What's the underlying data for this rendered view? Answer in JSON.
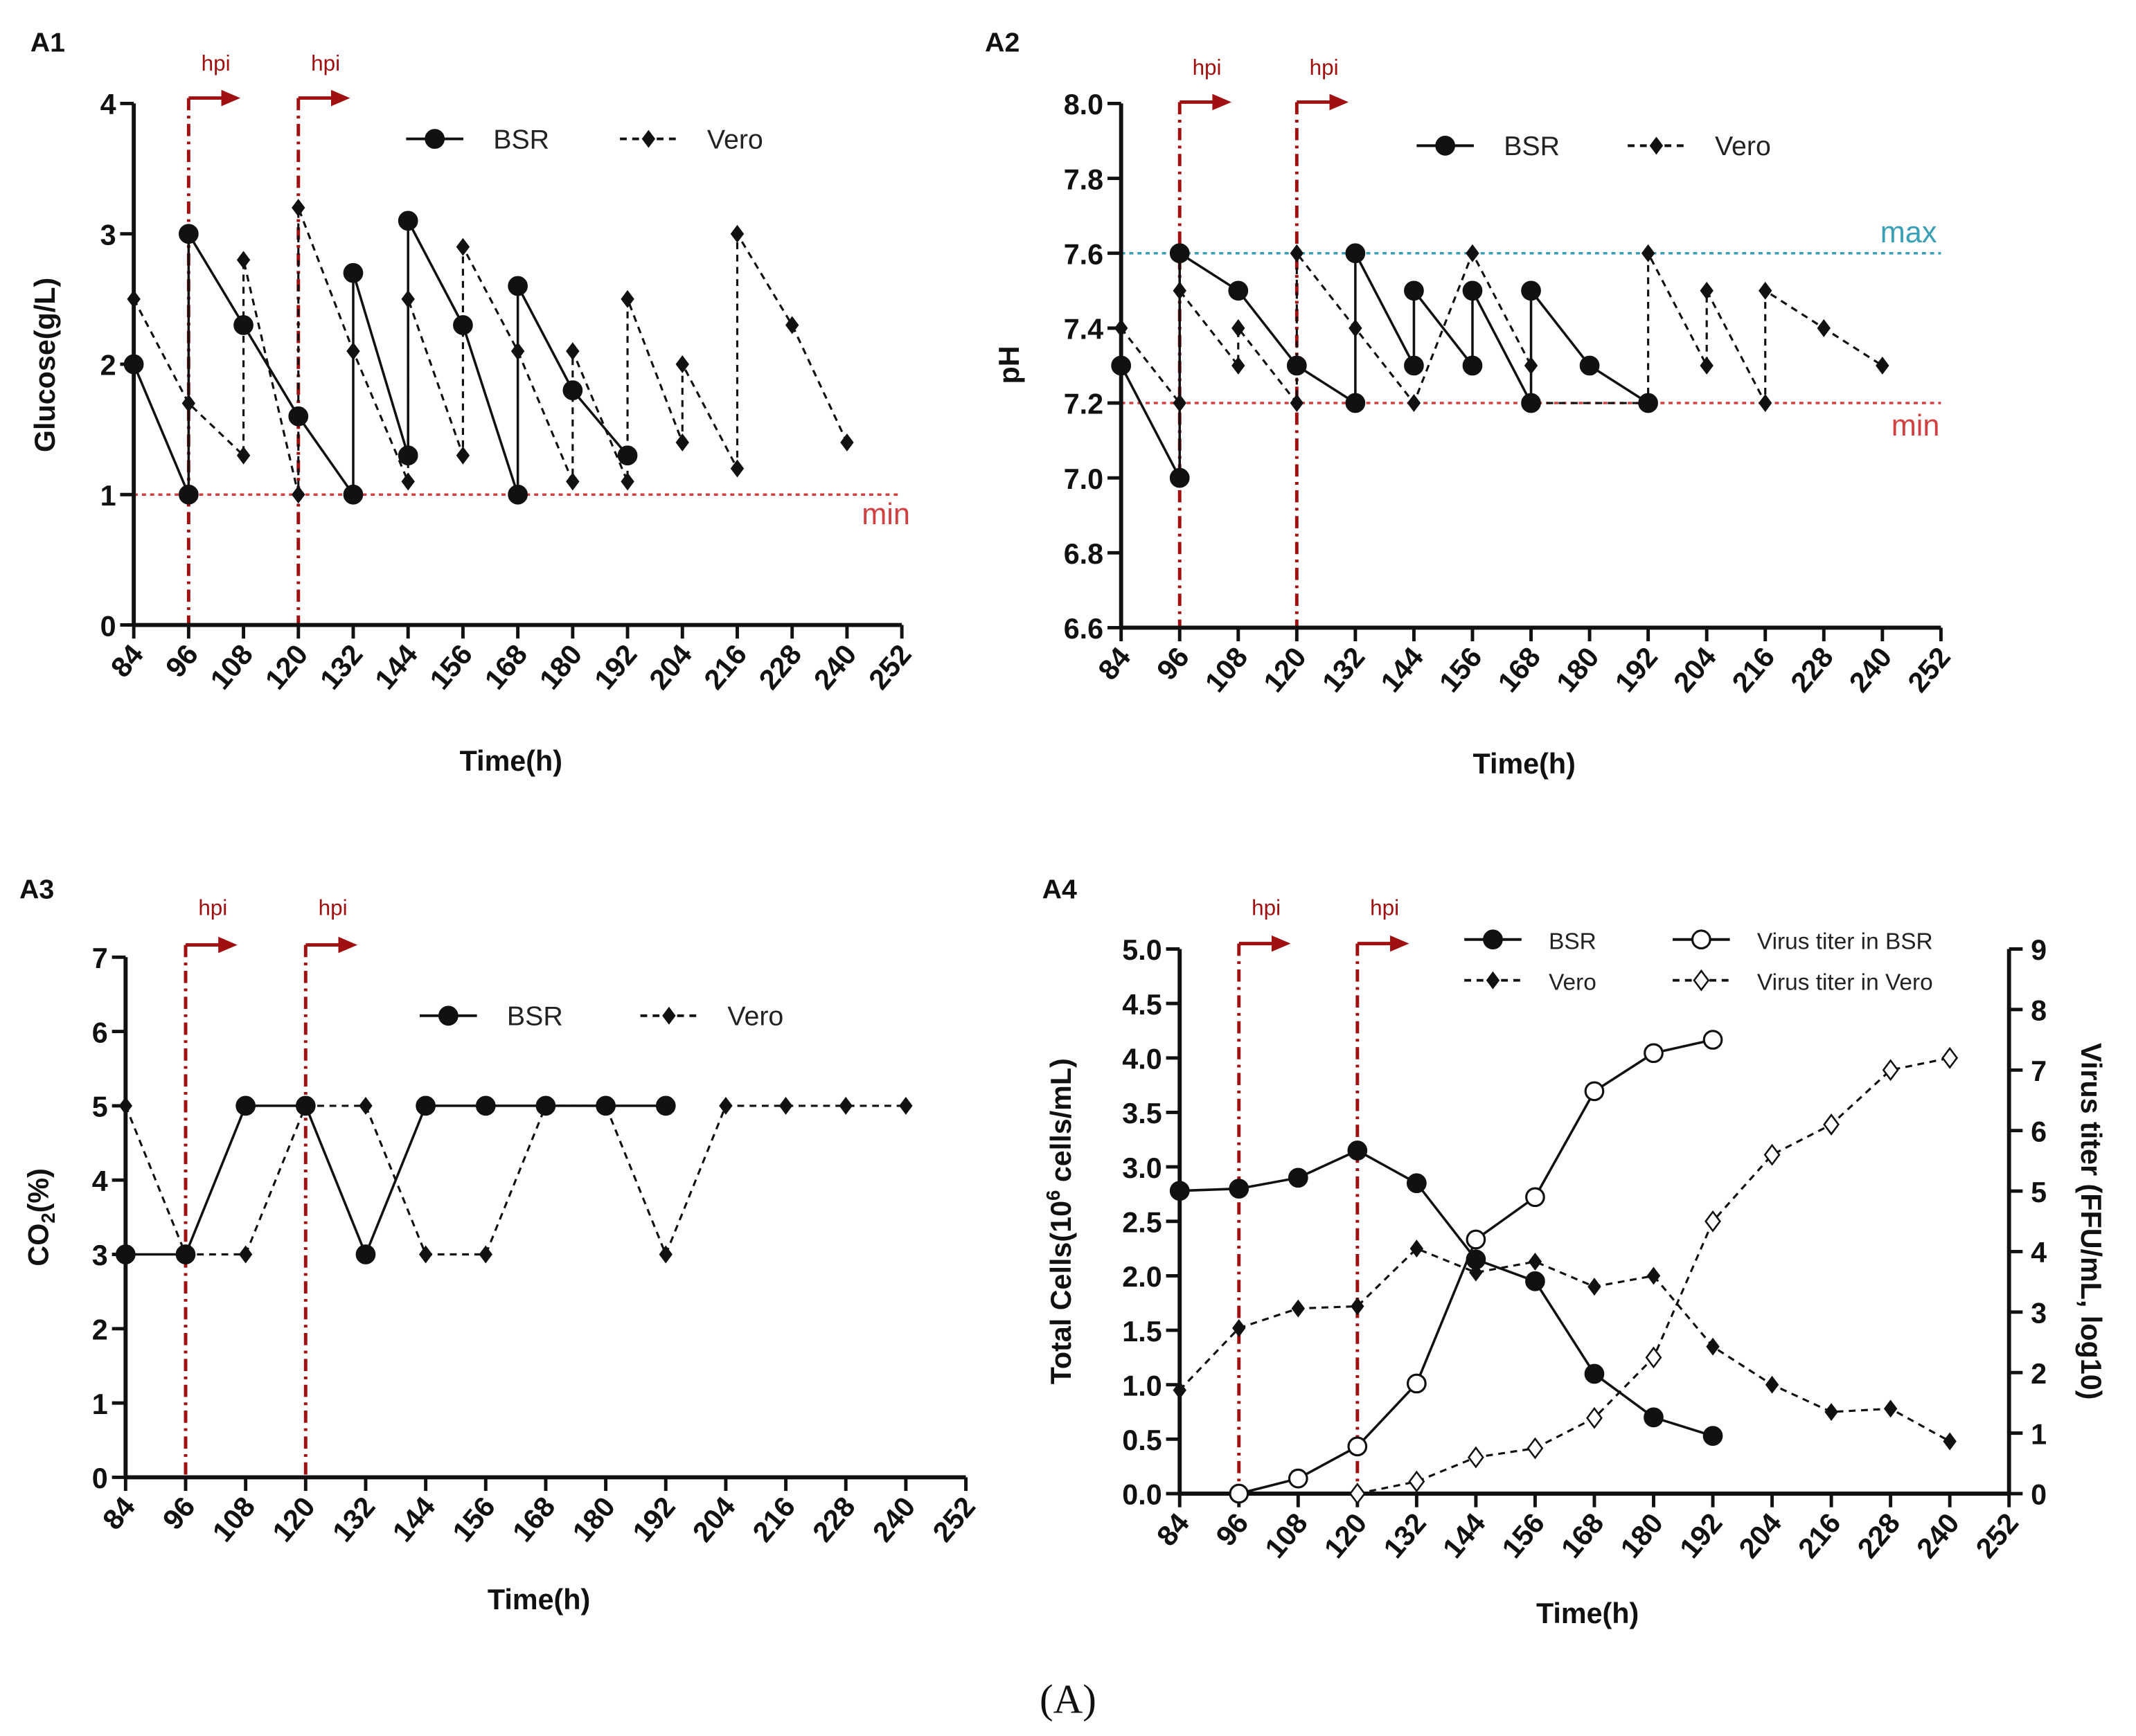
{
  "caption": "(A)",
  "chart_data": [
    {
      "id": "A1",
      "type": "line",
      "panel_label": "A1",
      "xlabel": "Time(h)",
      "ylabel": "Glucose(g/L)",
      "xlim": [
        84,
        252
      ],
      "xticks": [
        "84",
        "96",
        "108",
        "120",
        "132",
        "144",
        "156",
        "168",
        "180",
        "192",
        "204",
        "216",
        "228",
        "240",
        "252"
      ],
      "ylim": [
        0,
        4
      ],
      "yticks": [
        "0",
        "1",
        "2",
        "3",
        "4"
      ],
      "hpi": {
        "label": "hpi",
        "x": [
          96,
          120
        ],
        "color": "#a01010"
      },
      "ref_lines": [
        {
          "label": "min",
          "y": 1,
          "color": "#d04040"
        }
      ],
      "series": [
        {
          "name": "BSR",
          "style": "solid-circle",
          "points": [
            [
              84,
              2
            ],
            [
              96,
              1
            ],
            [
              96,
              3
            ],
            [
              108,
              2.3
            ],
            [
              120,
              1.6
            ],
            [
              132,
              1
            ],
            [
              132,
              2.7
            ],
            [
              144,
              1.3
            ],
            [
              144,
              3.1
            ],
            [
              156,
              2.3
            ],
            [
              168,
              1
            ],
            [
              168,
              2.6
            ],
            [
              180,
              1.8
            ],
            [
              192,
              1.3
            ]
          ]
        },
        {
          "name": "Vero",
          "style": "dashed-diamond",
          "points": [
            [
              84,
              2.5
            ],
            [
              96,
              1.7
            ],
            [
              108,
              1.3
            ],
            [
              108,
              2.8
            ],
            [
              120,
              1.0
            ],
            [
              120,
              3.2
            ],
            [
              132,
              2.1
            ],
            [
              144,
              1.1
            ],
            [
              144,
              2.5
            ],
            [
              156,
              1.3
            ],
            [
              156,
              2.9
            ],
            [
              168,
              2.1
            ],
            [
              180,
              1.1
            ],
            [
              180,
              2.1
            ],
            [
              192,
              1.1
            ],
            [
              192,
              2.5
            ],
            [
              204,
              1.4
            ],
            [
              204,
              2.0
            ],
            [
              216,
              1.2
            ],
            [
              216,
              3.0
            ],
            [
              228,
              2.3
            ],
            [
              240,
              1.4
            ]
          ]
        }
      ]
    },
    {
      "id": "A2",
      "type": "line",
      "panel_label": "A2",
      "xlabel": "Time(h)",
      "ylabel": "pH",
      "xlim": [
        84,
        252
      ],
      "xticks": [
        "84",
        "96",
        "108",
        "120",
        "132",
        "144",
        "156",
        "168",
        "180",
        "192",
        "204",
        "216",
        "228",
        "240",
        "252"
      ],
      "ylim": [
        6.6,
        8.0
      ],
      "yticks": [
        "6.6",
        "6.8",
        "7.0",
        "7.2",
        "7.4",
        "7.6",
        "7.8",
        "8.0"
      ],
      "hpi": {
        "label": "hpi",
        "x": [
          96,
          120
        ],
        "color": "#a01010"
      },
      "ref_lines": [
        {
          "label": "max",
          "y": 7.6,
          "color": "#3a9fb5"
        },
        {
          "label": "min",
          "y": 7.2,
          "color": "#d04040"
        }
      ],
      "series": [
        {
          "name": "BSR",
          "style": "solid-circle",
          "points": [
            [
              84,
              7.3
            ],
            [
              96,
              7.0
            ],
            [
              96,
              7.6
            ],
            [
              108,
              7.5
            ],
            [
              120,
              7.3
            ],
            [
              132,
              7.2
            ],
            [
              132,
              7.6
            ],
            [
              144,
              7.3
            ],
            [
              144,
              7.5
            ],
            [
              156,
              7.3
            ],
            [
              156,
              7.5
            ],
            [
              168,
              7.2
            ],
            [
              168,
              7.5
            ],
            [
              180,
              7.3
            ],
            [
              192,
              7.2
            ]
          ]
        },
        {
          "name": "Vero",
          "style": "dashed-diamond",
          "points": [
            [
              84,
              7.4
            ],
            [
              96,
              7.2
            ],
            [
              96,
              7.5
            ],
            [
              108,
              7.3
            ],
            [
              108,
              7.4
            ],
            [
              120,
              7.2
            ],
            [
              120,
              7.6
            ],
            [
              132,
              7.4
            ],
            [
              144,
              7.2
            ],
            [
              156,
              7.6
            ],
            [
              168,
              7.3
            ],
            [
              168,
              7.2
            ],
            [
              192,
              7.2
            ],
            [
              192,
              7.6
            ],
            [
              204,
              7.3
            ],
            [
              204,
              7.5
            ],
            [
              216,
              7.2
            ],
            [
              216,
              7.5
            ],
            [
              228,
              7.4
            ],
            [
              240,
              7.3
            ]
          ]
        }
      ]
    },
    {
      "id": "A3",
      "type": "line",
      "panel_label": "A3",
      "xlabel": "Time(h)",
      "ylabel_parts": [
        "CO",
        "2",
        "(%)"
      ],
      "xlim": [
        84,
        252
      ],
      "xticks": [
        "84",
        "96",
        "108",
        "120",
        "132",
        "144",
        "156",
        "168",
        "180",
        "192",
        "204",
        "216",
        "228",
        "240",
        "252"
      ],
      "ylim": [
        0,
        7
      ],
      "yticks": [
        "0",
        "1",
        "2",
        "3",
        "4",
        "5",
        "6",
        "7"
      ],
      "hpi": {
        "label": "hpi",
        "x": [
          96,
          120
        ],
        "color": "#a01010"
      },
      "ref_lines": [],
      "series": [
        {
          "name": "BSR",
          "style": "solid-circle",
          "points": [
            [
              84,
              3
            ],
            [
              96,
              3
            ],
            [
              108,
              5
            ],
            [
              120,
              5
            ],
            [
              132,
              3
            ],
            [
              144,
              5
            ],
            [
              156,
              5
            ],
            [
              168,
              5
            ],
            [
              180,
              5
            ],
            [
              192,
              5
            ]
          ]
        },
        {
          "name": "Vero",
          "style": "dashed-diamond",
          "points": [
            [
              84,
              5
            ],
            [
              96,
              3
            ],
            [
              108,
              3
            ],
            [
              120,
              5
            ],
            [
              132,
              5
            ],
            [
              144,
              3
            ],
            [
              156,
              3
            ],
            [
              168,
              5
            ],
            [
              180,
              5
            ],
            [
              192,
              3
            ],
            [
              204,
              5
            ],
            [
              216,
              5
            ],
            [
              228,
              5
            ],
            [
              240,
              5
            ]
          ]
        }
      ]
    },
    {
      "id": "A4",
      "type": "line",
      "panel_label": "A4",
      "xlabel": "Time(h)",
      "ylabel_parts": [
        "Total Cells(10",
        "6",
        " cells/mL)"
      ],
      "y2label": "Virus titer (FFU/mL, log10)",
      "xlim": [
        84,
        252
      ],
      "xticks": [
        "84",
        "96",
        "108",
        "120",
        "132",
        "144",
        "156",
        "168",
        "180",
        "192",
        "204",
        "216",
        "228",
        "240",
        "252"
      ],
      "ylim": [
        0,
        5
      ],
      "yticks": [
        "0.0",
        "0.5",
        "1.0",
        "1.5",
        "2.0",
        "2.5",
        "3.0",
        "3.5",
        "4.0",
        "4.5",
        "5.0"
      ],
      "y2lim": [
        0,
        9
      ],
      "y2ticks": [
        "0",
        "1",
        "2",
        "3",
        "4",
        "5",
        "6",
        "7",
        "8",
        "9"
      ],
      "hpi": {
        "label": "hpi",
        "x": [
          96,
          120
        ],
        "color": "#a01010"
      },
      "ref_lines": [],
      "series": [
        {
          "name": "BSR",
          "style": "solid-circle",
          "axis": "left",
          "points": [
            [
              84,
              2.78
            ],
            [
              96,
              2.8
            ],
            [
              108,
              2.9
            ],
            [
              120,
              3.15
            ],
            [
              132,
              2.85
            ],
            [
              144,
              2.15
            ],
            [
              156,
              1.95
            ],
            [
              168,
              1.1
            ],
            [
              180,
              0.7
            ],
            [
              192,
              0.53
            ]
          ]
        },
        {
          "name": "Vero",
          "style": "dashed-diamond",
          "axis": "left",
          "points": [
            [
              84,
              0.95
            ],
            [
              96,
              1.52
            ],
            [
              108,
              1.7
            ],
            [
              120,
              1.72
            ],
            [
              132,
              2.25
            ],
            [
              144,
              2.03
            ],
            [
              156,
              2.13
            ],
            [
              168,
              1.9
            ],
            [
              180,
              2.0
            ],
            [
              192,
              1.35
            ],
            [
              204,
              1.0
            ],
            [
              216,
              0.75
            ],
            [
              228,
              0.78
            ],
            [
              240,
              0.48
            ]
          ]
        },
        {
          "name": "Virus titer in BSR",
          "style": "solid-open-circle",
          "axis": "right",
          "points": [
            [
              96,
              0
            ],
            [
              108,
              0.25
            ],
            [
              120,
              0.78
            ],
            [
              132,
              1.82
            ],
            [
              144,
              4.2
            ],
            [
              156,
              4.9
            ],
            [
              168,
              6.65
            ],
            [
              180,
              7.28
            ],
            [
              192,
              7.5
            ]
          ]
        },
        {
          "name": "Virus titer in Vero",
          "style": "dashed-open-diamond",
          "axis": "right",
          "points": [
            [
              120,
              0
            ],
            [
              132,
              0.2
            ],
            [
              144,
              0.6
            ],
            [
              156,
              0.75
            ],
            [
              168,
              1.25
            ],
            [
              180,
              2.25
            ],
            [
              192,
              4.5
            ],
            [
              204,
              5.6
            ],
            [
              216,
              6.1
            ],
            [
              228,
              7.0
            ],
            [
              240,
              7.2
            ]
          ]
        }
      ]
    }
  ]
}
